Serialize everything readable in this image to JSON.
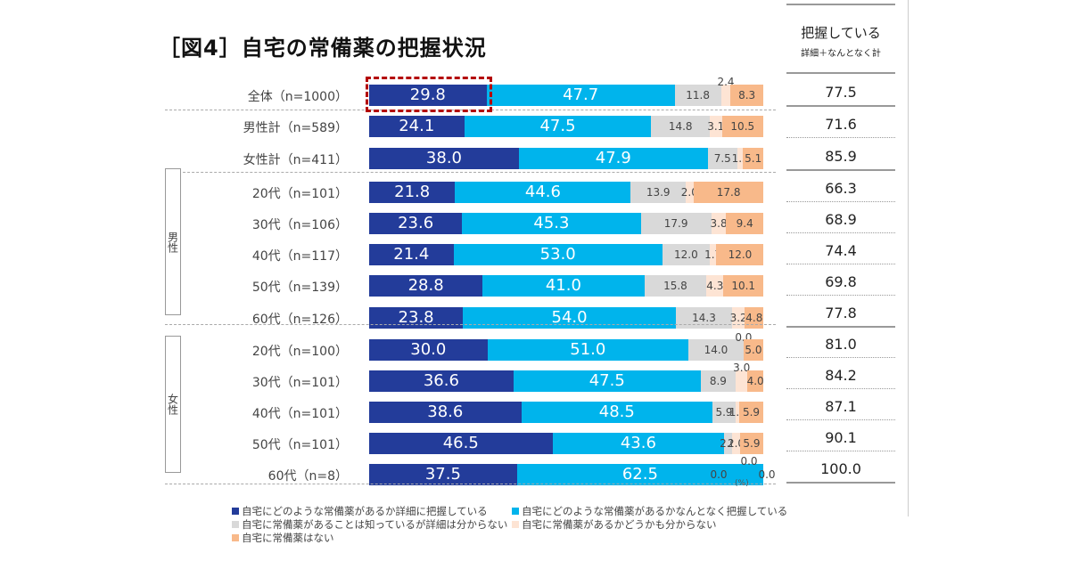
{
  "title": "［図4］自宅の常備薬の把握状況",
  "right_column": {
    "header_main": "把握している",
    "header_sub": "詳細＋なんとなく計"
  },
  "unit_label": "(%)",
  "groups": [
    {
      "label": "男性",
      "rows": [
        3,
        4,
        5,
        6,
        7
      ]
    },
    {
      "label": "女性",
      "rows": [
        8,
        9,
        10,
        11,
        12
      ]
    }
  ],
  "chart_data": {
    "type": "bar",
    "orientation": "horizontal-stacked-100",
    "title": "［図4］自宅の常備薬の把握状況",
    "xlabel": "",
    "ylabel": "",
    "xlim": [
      0,
      100
    ],
    "unit": "%",
    "legend_position": "bottom",
    "categories": [
      "全体（n=1000）",
      "男性計（n=589）",
      "女性計（n=411）",
      "20代（n=101）",
      "30代（n=106）",
      "40代（n=117）",
      "50代（n=139）",
      "60代（n=126）",
      "20代（n=100）",
      "30代（n=101）",
      "40代（n=101）",
      "50代（n=101）",
      "60代（n=8）"
    ],
    "series": [
      {
        "name": "自宅にどのような常備薬があるか詳細に把握している",
        "color": "#233c9a",
        "values": [
          29.8,
          24.1,
          38.0,
          21.8,
          23.6,
          21.4,
          28.8,
          23.8,
          30.0,
          36.6,
          38.6,
          46.5,
          37.5
        ]
      },
      {
        "name": "自宅にどのような常備薬があるかなんとなく把握している",
        "color": "#00b4ec",
        "values": [
          47.7,
          47.5,
          47.9,
          44.6,
          45.3,
          53.0,
          41.0,
          54.0,
          51.0,
          47.5,
          48.5,
          43.6,
          62.5
        ]
      },
      {
        "name": "自宅に常備薬があることは知っているが詳細は分からない",
        "color": "#d9d9d9",
        "values": [
          11.8,
          14.8,
          7.5,
          13.9,
          17.9,
          12.0,
          15.8,
          14.3,
          14.0,
          8.9,
          5.9,
          2.0,
          0.0
        ]
      },
      {
        "name": "自宅に常備薬があるかどうかも分からない",
        "color": "#fde4d4",
        "values": [
          2.4,
          3.1,
          1.5,
          2.0,
          3.8,
          1.7,
          4.3,
          3.2,
          0.0,
          3.0,
          1.0,
          2.0,
          0.0
        ]
      },
      {
        "name": "自宅に常備薬はない",
        "color": "#f8b98a",
        "values": [
          8.3,
          10.5,
          5.1,
          17.8,
          9.4,
          12.0,
          10.1,
          4.8,
          5.0,
          4.0,
          5.9,
          5.9,
          0.0
        ]
      }
    ],
    "totals_label": "把握している 詳細＋なんとなく計",
    "totals": [
      77.5,
      71.6,
      85.9,
      66.3,
      68.9,
      74.4,
      69.8,
      77.8,
      81.0,
      84.2,
      87.1,
      90.1,
      100.0
    ],
    "highlighted": {
      "row": 0,
      "series": 0,
      "value": 29.8
    }
  }
}
